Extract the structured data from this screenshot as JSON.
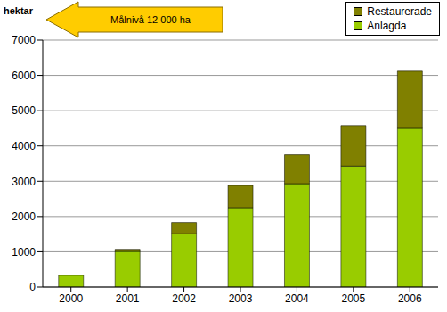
{
  "chart_data": {
    "type": "bar",
    "y_label": "hektar",
    "annotation": "Målnivå 12 000 ha",
    "categories": [
      "2000",
      "2001",
      "2002",
      "2003",
      "2004",
      "2005",
      "2006"
    ],
    "series": [
      {
        "name": "Anlagda",
        "color": "#99cc00",
        "values": [
          330,
          1010,
          1510,
          2250,
          2930,
          3430,
          4500
        ]
      },
      {
        "name": "Restaurerade",
        "color": "#808000",
        "values": [
          0,
          60,
          320,
          630,
          820,
          1150,
          1620
        ]
      }
    ],
    "stacked": true,
    "ylim": [
      0,
      7000
    ],
    "yticks": [
      0,
      1000,
      2000,
      3000,
      4000,
      5000,
      6000,
      7000
    ],
    "grid": true,
    "legend": "upper right"
  }
}
